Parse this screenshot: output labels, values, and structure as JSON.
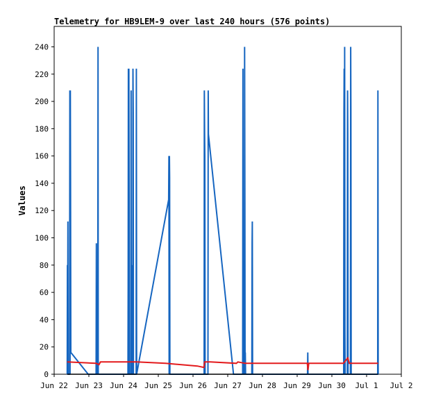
{
  "chart_data": {
    "type": "line",
    "title": "Telemetry for HB9LEM-9 over last 240 hours (576 points)",
    "xlabel": "",
    "ylabel": "Values",
    "xlim": [
      "2022-06-22T00:00",
      "2022-07-02T00:00"
    ],
    "ylim": [
      0,
      255
    ],
    "x_tick_labels": [
      "Jun 22",
      "Jun 23",
      "Jun 24",
      "Jun 25",
      "Jun 26",
      "Jun 27",
      "Jun 28",
      "Jun 29",
      "Jun 30",
      "Jul 1",
      "Jul 2"
    ],
    "y_ticks": [
      0,
      20,
      40,
      60,
      80,
      100,
      120,
      140,
      160,
      180,
      200,
      220,
      240
    ],
    "grid": false,
    "legend": "none",
    "series": [
      {
        "color": "#1565c0",
        "points": [
          [
            "2022-06-22T09:00",
            0
          ],
          [
            "2022-06-22T09:10",
            80
          ],
          [
            "2022-06-22T09:20",
            0
          ],
          [
            "2022-06-22T09:30",
            112
          ],
          [
            "2022-06-22T09:40",
            0
          ],
          [
            "2022-06-22T10:40",
            0
          ],
          [
            "2022-06-22T10:50",
            208
          ],
          [
            "2022-06-22T11:00",
            0
          ],
          [
            "2022-06-22T11:10",
            208
          ],
          [
            "2022-06-22T11:20",
            144
          ],
          [
            "2022-06-22T11:30",
            16
          ],
          [
            "2022-06-22T23:30",
            0
          ],
          [
            "2022-06-23T05:00",
            0
          ],
          [
            "2022-06-23T05:10",
            96
          ],
          [
            "2022-06-23T05:20",
            0
          ],
          [
            "2022-06-23T06:10",
            0
          ],
          [
            "2022-06-23T06:20",
            240
          ],
          [
            "2022-06-23T06:30",
            0
          ],
          [
            "2022-06-24T03:00",
            0
          ],
          [
            "2022-06-24T03:10",
            64
          ],
          [
            "2022-06-24T03:20",
            224
          ],
          [
            "2022-06-24T03:30",
            0
          ],
          [
            "2022-06-24T03:40",
            224
          ],
          [
            "2022-06-24T03:50",
            128
          ],
          [
            "2022-06-24T04:00",
            0
          ],
          [
            "2022-06-24T05:00",
            0
          ],
          [
            "2022-06-24T05:10",
            208
          ],
          [
            "2022-06-24T05:20",
            0
          ],
          [
            "2022-06-24T05:30",
            80
          ],
          [
            "2022-06-24T05:40",
            0
          ],
          [
            "2022-06-24T06:20",
            0
          ],
          [
            "2022-06-24T06:30",
            224
          ],
          [
            "2022-06-24T06:40",
            192
          ],
          [
            "2022-06-24T06:50",
            0
          ],
          [
            "2022-06-24T08:10",
            0
          ],
          [
            "2022-06-24T08:40",
            0
          ],
          [
            "2022-06-24T08:50",
            224
          ],
          [
            "2022-06-24T09:00",
            0
          ],
          [
            "2022-06-25T07:10",
            128
          ],
          [
            "2022-06-25T07:20",
            160
          ],
          [
            "2022-06-25T07:30",
            0
          ],
          [
            "2022-06-25T07:40",
            160
          ],
          [
            "2022-06-25T07:50",
            144
          ],
          [
            "2022-06-25T08:00",
            0
          ],
          [
            "2022-06-26T07:40",
            0
          ],
          [
            "2022-06-26T07:50",
            208
          ],
          [
            "2022-06-26T08:00",
            176
          ],
          [
            "2022-06-26T08:10",
            160
          ],
          [
            "2022-06-26T08:20",
            0
          ],
          [
            "2022-06-26T10:20",
            0
          ],
          [
            "2022-06-26T10:30",
            208
          ],
          [
            "2022-06-26T10:40",
            176
          ],
          [
            "2022-06-27T04:00",
            0
          ],
          [
            "2022-06-27T10:20",
            0
          ],
          [
            "2022-06-27T10:30",
            224
          ],
          [
            "2022-06-27T10:40",
            0
          ],
          [
            "2022-06-27T11:30",
            0
          ],
          [
            "2022-06-27T11:40",
            240
          ],
          [
            "2022-06-27T11:50",
            128
          ],
          [
            "2022-06-27T12:00",
            0
          ],
          [
            "2022-06-27T12:10",
            16
          ],
          [
            "2022-06-27T12:20",
            0
          ],
          [
            "2022-06-27T16:40",
            0
          ],
          [
            "2022-06-27T16:50",
            96
          ],
          [
            "2022-06-27T17:00",
            112
          ],
          [
            "2022-06-27T17:10",
            0
          ],
          [
            "2022-06-29T07:10",
            0
          ],
          [
            "2022-06-29T07:20",
            16
          ],
          [
            "2022-06-29T07:30",
            0
          ],
          [
            "2022-06-30T08:10",
            0
          ],
          [
            "2022-06-30T08:20",
            192
          ],
          [
            "2022-06-30T08:30",
            224
          ],
          [
            "2022-06-30T08:40",
            0
          ],
          [
            "2022-06-30T08:50",
            240
          ],
          [
            "2022-06-30T09:00",
            32
          ],
          [
            "2022-06-30T09:10",
            0
          ],
          [
            "2022-06-30T10:40",
            0
          ],
          [
            "2022-06-30T10:50",
            208
          ],
          [
            "2022-06-30T11:00",
            176
          ],
          [
            "2022-06-30T11:10",
            0
          ],
          [
            "2022-06-30T12:50",
            0
          ],
          [
            "2022-06-30T13:00",
            240
          ],
          [
            "2022-06-30T13:10",
            192
          ],
          [
            "2022-06-30T13:20",
            0
          ],
          [
            "2022-07-01T07:40",
            0
          ],
          [
            "2022-07-01T07:50",
            208
          ],
          [
            "2022-07-01T08:00",
            0
          ]
        ]
      },
      {
        "color": "#e31a1c",
        "points": [
          [
            "2022-06-22T09:00",
            9
          ],
          [
            "2022-06-23T05:00",
            8
          ],
          [
            "2022-06-23T07:00",
            7
          ],
          [
            "2022-06-23T08:00",
            9
          ],
          [
            "2022-06-24T09:00",
            9
          ],
          [
            "2022-06-25T05:00",
            8
          ],
          [
            "2022-06-26T03:00",
            6
          ],
          [
            "2022-06-26T07:30",
            5
          ],
          [
            "2022-06-26T08:00",
            9
          ],
          [
            "2022-06-26T12:00",
            9
          ],
          [
            "2022-06-27T06:00",
            8
          ],
          [
            "2022-06-27T07:00",
            9
          ],
          [
            "2022-06-27T12:00",
            8
          ],
          [
            "2022-06-28T12:00",
            8
          ],
          [
            "2022-06-29T07:00",
            8
          ],
          [
            "2022-06-29T07:30",
            3
          ],
          [
            "2022-06-29T08:00",
            8
          ],
          [
            "2022-06-30T08:00",
            8
          ],
          [
            "2022-06-30T11:00",
            12
          ],
          [
            "2022-06-30T12:00",
            8
          ],
          [
            "2022-07-01T08:00",
            8
          ]
        ]
      },
      {
        "color": "#000000",
        "points": [
          [
            "2022-06-22T09:00",
            0
          ],
          [
            "2022-07-01T08:00",
            0
          ]
        ]
      }
    ]
  }
}
